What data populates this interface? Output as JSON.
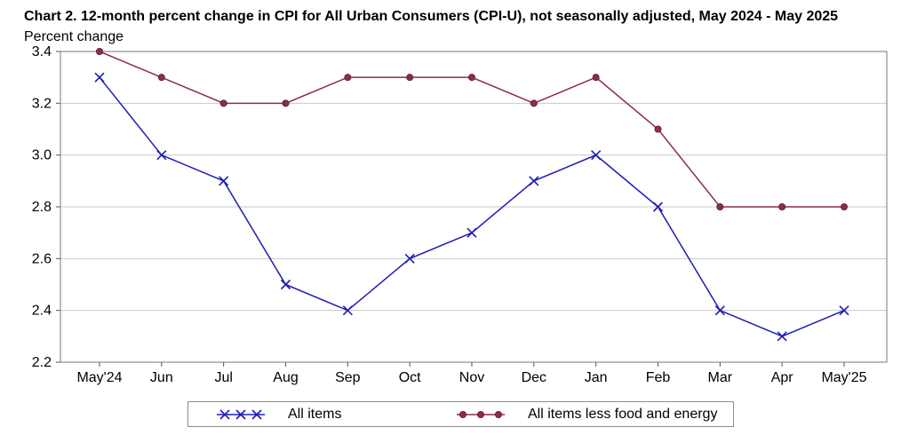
{
  "chart_data": {
    "type": "line",
    "title": "Chart 2. 12-month percent change in CPI for All Urban Consumers (CPI-U), not seasonally adjusted, May 2024 - May 2025",
    "ylabel": "Percent change",
    "xlabel": "",
    "categories": [
      "May'24",
      "Jun",
      "Jul",
      "Aug",
      "Sep",
      "Oct",
      "Nov",
      "Dec",
      "Jan",
      "Feb",
      "Mar",
      "Apr",
      "May'25"
    ],
    "ylim": [
      2.2,
      3.4
    ],
    "yticks": [
      "2.2",
      "2.4",
      "2.6",
      "2.8",
      "3.0",
      "3.2",
      "3.4"
    ],
    "grid": true,
    "legend_position": "bottom",
    "series": [
      {
        "name": "All items",
        "marker": "x",
        "color": "#1c1cb4",
        "values": [
          3.3,
          3.0,
          2.9,
          2.5,
          2.4,
          2.6,
          2.7,
          2.9,
          3.0,
          2.8,
          2.4,
          2.3,
          2.4
        ]
      },
      {
        "name": "All items less food and energy",
        "marker": "circle",
        "color": "#8b2e4a",
        "values": [
          3.4,
          3.3,
          3.2,
          3.2,
          3.3,
          3.3,
          3.3,
          3.2,
          3.3,
          3.1,
          2.8,
          2.8,
          2.8
        ]
      }
    ]
  }
}
